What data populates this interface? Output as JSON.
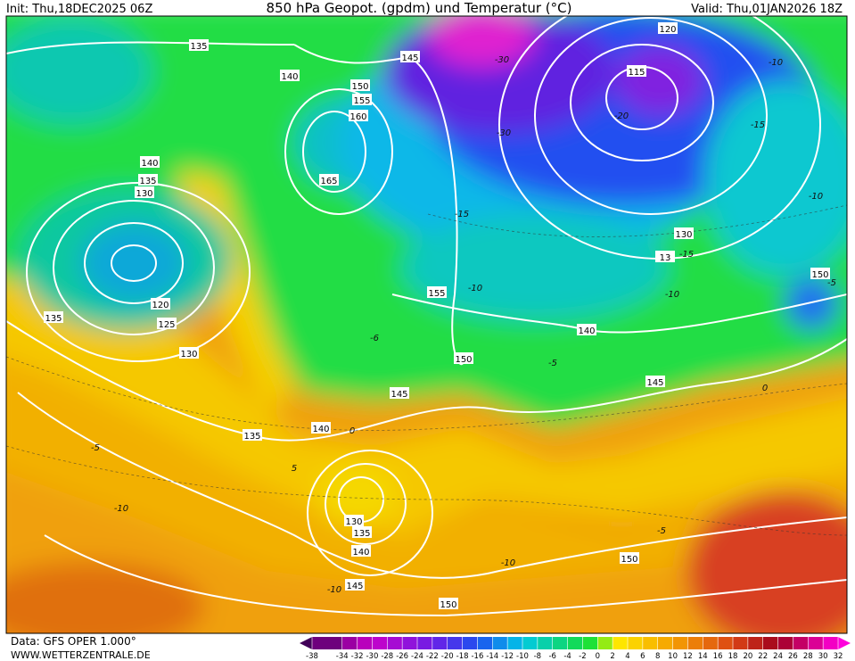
{
  "header": {
    "init": "Init: Thu,18DEC2025 06Z",
    "title": "850 hPa Geopot. (gpdm) und Temperatur (°C)",
    "valid": "Valid: Thu,01JAN2026 18Z"
  },
  "footer": {
    "source": "Data: GFS OPER 1.000°",
    "site": "WWW.WETTERZENTRALE.DE"
  },
  "color_scale": {
    "ticks": [
      -38,
      -34,
      -32,
      -30,
      -28,
      -26,
      -24,
      -22,
      -20,
      -18,
      -16,
      -14,
      -12,
      -10,
      -8,
      -6,
      -4,
      -2,
      0,
      2,
      4,
      6,
      8,
      10,
      12,
      14,
      16,
      18,
      20,
      22,
      24,
      26,
      28,
      30,
      32
    ]
  },
  "geopotential_labels": [
    135,
    140,
    145,
    150,
    155,
    160,
    165,
    140,
    135,
    130,
    120,
    125,
    130,
    135,
    155,
    150,
    140,
    145,
    145,
    140,
    135,
    130,
    135,
    140,
    145,
    150,
    150,
    120,
    115,
    130,
    13,
    150
  ],
  "temperature_labels": [
    -30,
    -30,
    -20,
    -15,
    -10,
    -10,
    -15,
    -10,
    -15,
    -10,
    -5,
    -6,
    -5,
    0,
    0,
    -5,
    -10,
    -10,
    5,
    -5,
    -10
  ]
}
